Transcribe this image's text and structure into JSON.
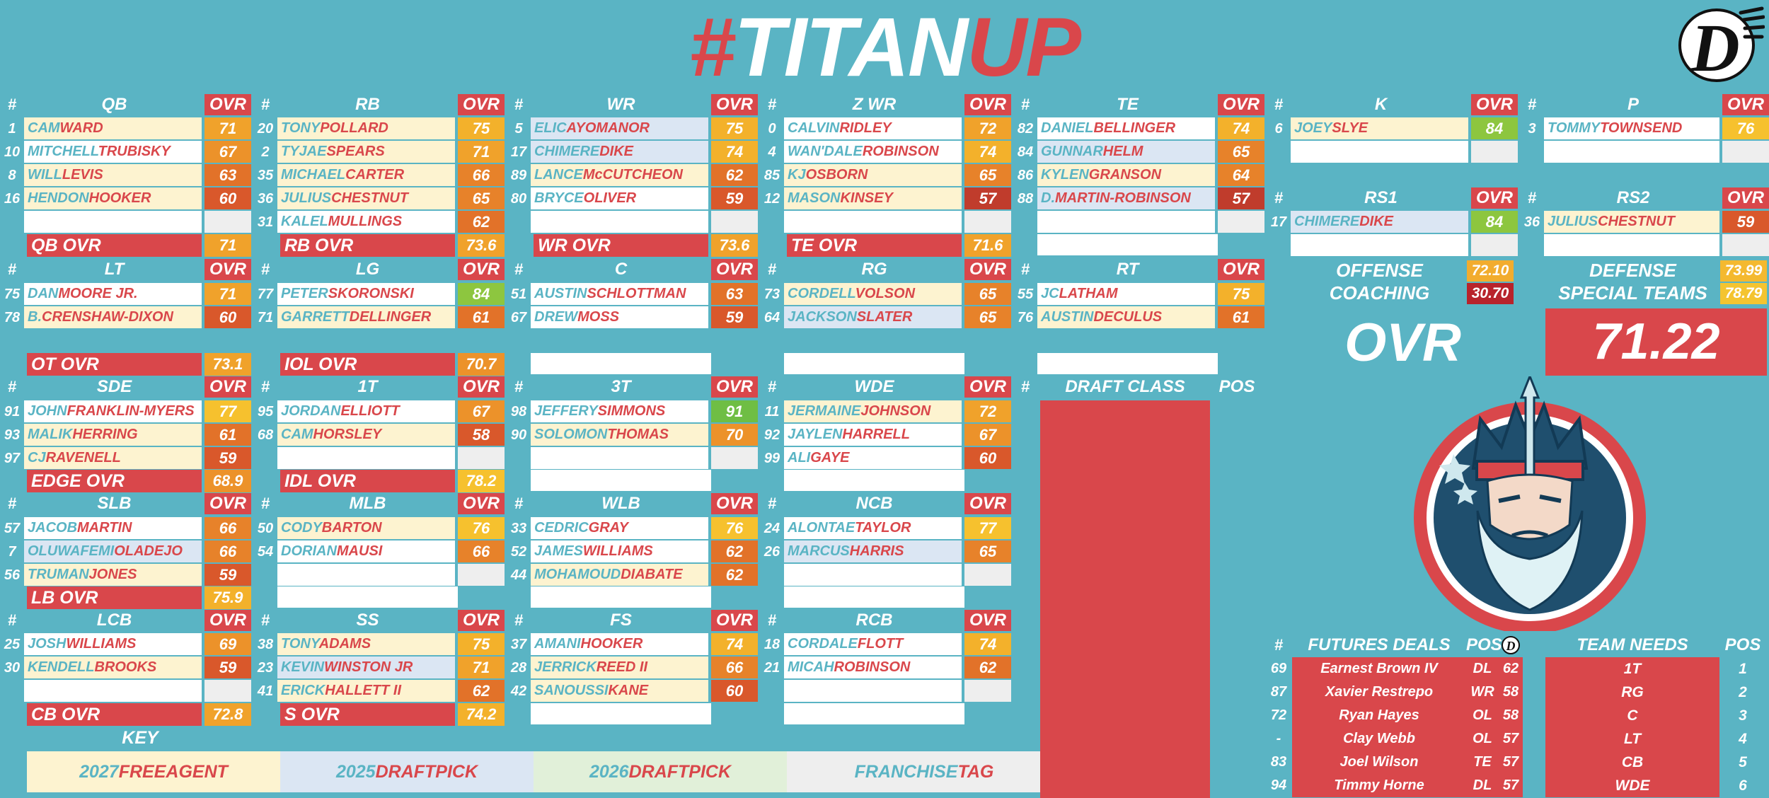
{
  "title": {
    "pre": "#",
    "mid": "TITAN",
    "suf": "UP"
  },
  "colors": {
    "background": "#5ab4c4",
    "accent": "#d9474b",
    "fa_2027": "#fdf3d0",
    "pick_2025": "#dbe6f3",
    "pick_2026": "#e1f0d9",
    "tag": "#eeeeee",
    "rating_scale": {
      "90": "#6fbe44",
      "84": "#8dc63f",
      "77": "#fbc02d",
      "75": "#f6b02b",
      "72": "#f2ac2e",
      "70": "#ef9a2b",
      "66": "#ea8a2a",
      "62": "#e57829",
      "59": "#dc5d2c",
      "57": "#c8412c"
    }
  },
  "header_num": "#",
  "header_ovr": "OVR",
  "groups": [
    {
      "pos": "QB",
      "players": [
        {
          "n": "1",
          "f": "CAM",
          "l": "WARD",
          "r": 71,
          "c": "fa"
        },
        {
          "n": "10",
          "f": "MITCHELL",
          "l": "TRUBISKY",
          "r": 67,
          "c": "w"
        },
        {
          "n": "8",
          "f": "WILL",
          "l": "LEVIS",
          "r": 63,
          "c": "fa"
        },
        {
          "n": "16",
          "f": "HENDON",
          "l": "HOOKER",
          "r": 60,
          "c": "fa"
        }
      ]
    },
    {
      "pos": "RB",
      "players": [
        {
          "n": "20",
          "f": "TONY",
          "l": "POLLARD",
          "r": 75,
          "c": "fa"
        },
        {
          "n": "2",
          "f": "TYJAE",
          "l": "SPEARS",
          "r": 71,
          "c": "fa"
        },
        {
          "n": "35",
          "f": "MICHAEL",
          "l": "CARTER",
          "r": 66,
          "c": "fa"
        },
        {
          "n": "36",
          "f": "JULIUS",
          "l": "CHESTNUT",
          "r": 65,
          "c": "fa"
        },
        {
          "n": "31",
          "f": "KALEL",
          "l": "MULLINGS",
          "r": 62,
          "c": "w"
        }
      ]
    },
    {
      "pos": "WR",
      "players": [
        {
          "n": "5",
          "f": "ELIC",
          "l": "AYOMANOR",
          "r": 75,
          "c": "dp"
        },
        {
          "n": "17",
          "f": "CHIMERE",
          "l": "DIKE",
          "r": 74,
          "c": "dp"
        },
        {
          "n": "89",
          "f": "LANCE",
          "l": "McCUTCHEON",
          "r": 62,
          "c": "fa"
        },
        {
          "n": "80",
          "f": "BRYCE",
          "l": "OLIVER",
          "r": 59,
          "c": "w"
        }
      ]
    },
    {
      "pos": "Z WR",
      "players": [
        {
          "n": "0",
          "f": "CALVIN",
          "l": "RIDLEY",
          "r": 72,
          "c": "w"
        },
        {
          "n": "4",
          "f": "WAN'DALE",
          "l": "ROBINSON",
          "r": 74,
          "c": "w"
        },
        {
          "n": "85",
          "f": "KJ",
          "l": "OSBORN",
          "r": 65,
          "c": "fa"
        },
        {
          "n": "12",
          "f": "MASON",
          "l": "KINSEY",
          "r": 57,
          "c": "fa"
        }
      ]
    },
    {
      "pos": "TE",
      "players": [
        {
          "n": "82",
          "f": "DANIEL",
          "l": "BELLINGER",
          "r": 74,
          "c": "w"
        },
        {
          "n": "84",
          "f": "GUNNAR",
          "l": "HELM",
          "r": 65,
          "c": "dp"
        },
        {
          "n": "86",
          "f": "KYLEN",
          "l": "GRANSON",
          "r": 64,
          "c": "fa"
        },
        {
          "n": "88",
          "f": "D.",
          "l": "MARTIN-ROBINSON",
          "r": 57,
          "c": "dp"
        }
      ]
    },
    {
      "pos": "K",
      "players": [
        {
          "n": "6",
          "f": "JOEY",
          "l": "SLYE",
          "r": 84,
          "c": "fa"
        }
      ]
    },
    {
      "pos": "P",
      "players": [
        {
          "n": "3",
          "f": "TOMMY",
          "l": "TOWNSEND",
          "r": 76,
          "c": "w"
        }
      ]
    },
    {
      "pos": "RS1",
      "players": [
        {
          "n": "17",
          "f": "CHIMERE",
          "l": "DIKE",
          "r": 84,
          "c": "dp"
        }
      ]
    },
    {
      "pos": "RS2",
      "players": [
        {
          "n": "36",
          "f": "JULIUS",
          "l": "CHESTNUT",
          "r": 59,
          "c": "fa"
        }
      ]
    },
    {
      "pos": "LT",
      "players": [
        {
          "n": "75",
          "f": "DAN",
          "l": "MOORE",
          "s": " JR.",
          "r": 71,
          "c": "w"
        },
        {
          "n": "78",
          "f": "B.",
          "l": "CRENSHAW-DIXON",
          "r": 60,
          "c": "fa"
        }
      ]
    },
    {
      "pos": "LG",
      "players": [
        {
          "n": "77",
          "f": "PETER",
          "l": "SKORONSKI",
          "r": 84,
          "c": "w"
        },
        {
          "n": "71",
          "f": "GARRETT",
          "l": "DELLINGER",
          "r": 61,
          "c": "fa"
        }
      ]
    },
    {
      "pos": "C",
      "players": [
        {
          "n": "51",
          "f": "AUSTIN",
          "l": "SCHLOTTMAN",
          "r": 63,
          "c": "w"
        },
        {
          "n": "67",
          "f": "DREW",
          "l": "MOSS",
          "r": 59,
          "c": "w"
        }
      ]
    },
    {
      "pos": "RG",
      "players": [
        {
          "n": "73",
          "f": "CORDELL",
          "l": "VOLSON",
          "r": 65,
          "c": "fa"
        },
        {
          "n": "64",
          "f": "JACKSON",
          "l": "SLATER",
          "r": 65,
          "c": "dp"
        }
      ]
    },
    {
      "pos": "RT",
      "players": [
        {
          "n": "55",
          "f": "JC",
          "l": "LATHAM",
          "r": 75,
          "c": "w"
        },
        {
          "n": "76",
          "f": "AUSTIN",
          "l": "DECULUS",
          "r": 61,
          "c": "fa"
        }
      ]
    },
    {
      "pos": "SDE",
      "players": [
        {
          "n": "91",
          "f": "JOHN",
          "l": "FRANKLIN-MYERS",
          "r": 77,
          "c": "w"
        },
        {
          "n": "93",
          "f": "MALIK",
          "l": "HERRING",
          "r": 61,
          "c": "fa"
        },
        {
          "n": "97",
          "f": "CJ",
          "l": "RAVENELL",
          "r": 59,
          "c": "fa"
        }
      ]
    },
    {
      "pos": "1T",
      "players": [
        {
          "n": "95",
          "f": "JORDAN",
          "l": "ELLIOTT",
          "r": 67,
          "c": "w"
        },
        {
          "n": "68",
          "f": "CAM",
          "l": "HORSLEY",
          "r": 58,
          "c": "fa"
        }
      ]
    },
    {
      "pos": "3T",
      "players": [
        {
          "n": "98",
          "f": "JEFFERY",
          "l": "SIMMONS",
          "r": 91,
          "c": "w"
        },
        {
          "n": "90",
          "f": "SOLOMON",
          "l": "THOMAS",
          "r": 70,
          "c": "fa"
        }
      ]
    },
    {
      "pos": "WDE",
      "players": [
        {
          "n": "11",
          "f": "JERMAINE",
          "l": "JOHNSON",
          "r": 72,
          "c": "fa"
        },
        {
          "n": "92",
          "f": "JAYLEN",
          "l": "HARRELL",
          "r": 67,
          "c": "w"
        },
        {
          "n": "99",
          "f": "ALI",
          "l": "GAYE",
          "r": 60,
          "c": "w"
        }
      ]
    },
    {
      "pos": "SLB",
      "players": [
        {
          "n": "57",
          "f": "JACOB",
          "l": "MARTIN",
          "r": 66,
          "c": "w"
        },
        {
          "n": "7",
          "f": "OLUWAFEMI",
          "l": "OLADEJO",
          "r": 66,
          "c": "dp"
        },
        {
          "n": "56",
          "f": "TRUMAN",
          "l": "JONES",
          "r": 59,
          "c": "fa"
        }
      ]
    },
    {
      "pos": "MLB",
      "players": [
        {
          "n": "50",
          "f": "CODY",
          "l": "BARTON",
          "r": 76,
          "c": "fa"
        },
        {
          "n": "54",
          "f": "DORIAN",
          "l": "MAUSI",
          "r": 66,
          "c": "w"
        }
      ]
    },
    {
      "pos": "WLB",
      "players": [
        {
          "n": "33",
          "f": "CEDRIC",
          "l": "GRAY",
          "r": 76,
          "c": "w"
        },
        {
          "n": "52",
          "f": "JAMES",
          "l": "WILLIAMS",
          "r": 62,
          "c": "w"
        },
        {
          "n": "44",
          "f": "MOHAMOUD",
          "l": "DIABATE",
          "r": 62,
          "c": "fa"
        }
      ]
    },
    {
      "pos": "NCB",
      "players": [
        {
          "n": "24",
          "f": "ALONTAE",
          "l": "TAYLOR",
          "r": 77,
          "c": "w"
        },
        {
          "n": "26",
          "f": "MARCUS",
          "l": "HARRIS",
          "r": 65,
          "c": "dp"
        }
      ]
    },
    {
      "pos": "LCB",
      "players": [
        {
          "n": "25",
          "f": "JOSH",
          "l": "WILLIAMS",
          "r": 69,
          "c": "w"
        },
        {
          "n": "30",
          "f": "KENDELL",
          "l": "BROOKS",
          "r": 59,
          "c": "fa"
        }
      ]
    },
    {
      "pos": "SS",
      "players": [
        {
          "n": "38",
          "f": "TONY",
          "l": "ADAMS",
          "r": 75,
          "c": "fa"
        },
        {
          "n": "23",
          "f": "KEVIN",
          "l": "WINSTON",
          "s": " JR",
          "r": 71,
          "c": "dp"
        },
        {
          "n": "41",
          "f": "ERICK",
          "l": "HALLETT",
          "s": " II",
          "r": 62,
          "c": "fa"
        }
      ]
    },
    {
      "pos": "FS",
      "players": [
        {
          "n": "37",
          "f": "AMANI",
          "l": "HOOKER",
          "r": 74,
          "c": "w"
        },
        {
          "n": "28",
          "f": "JERRICK",
          "l": "REED",
          "s": " II",
          "r": 66,
          "c": "fa"
        },
        {
          "n": "42",
          "f": "SANOUSSI",
          "l": "KANE",
          "r": 60,
          "c": "fa"
        }
      ]
    },
    {
      "pos": "RCB",
      "players": [
        {
          "n": "18",
          "f": "CORDALE",
          "l": "FLOTT",
          "r": 74,
          "c": "w"
        },
        {
          "n": "21",
          "f": "MICAH",
          "l": "ROBINSON",
          "r": 62,
          "c": "w"
        }
      ]
    }
  ],
  "summaries": [
    {
      "label": "QB OVR",
      "value": "71"
    },
    {
      "label": "RB OVR",
      "value": "73.6"
    },
    {
      "label": "WR OVR",
      "value": "73.6"
    },
    {
      "label": "TE OVR",
      "value": "71.6"
    },
    {
      "label": "OT OVR",
      "value": "73.1"
    },
    {
      "label": "IOL OVR",
      "value": "70.7"
    },
    {
      "label": "EDGE OVR",
      "value": "68.9"
    },
    {
      "label": "IDL OVR",
      "value": "78.2"
    },
    {
      "label": "LB OVR",
      "value": "75.9"
    },
    {
      "label": "CB OVR",
      "value": "72.8"
    },
    {
      "label": "S OVR",
      "value": "74.2"
    }
  ],
  "team": {
    "offense_label": "OFFENSE",
    "offense_value": "72.10",
    "coaching_label": "COACHING",
    "coaching_value": "30.70",
    "defense_label": "DEFENSE",
    "defense_value": "73.99",
    "st_label": "SPECIAL TEAMS",
    "st_value": "78.79",
    "ovr_label": "OVR",
    "ovr_value": "71.22"
  },
  "draft": {
    "header_num": "#",
    "header_label": "DRAFT CLASS",
    "header_pos": "POS"
  },
  "futures": {
    "header_num": "#",
    "header_label": "FUTURES DEALS",
    "header_pos": "POS",
    "rows": [
      {
        "n": "69",
        "name": "Earnest Brown IV",
        "pos": "DL",
        "ovr": "62"
      },
      {
        "n": "87",
        "name": "Xavier Restrepo",
        "pos": "WR",
        "ovr": "58"
      },
      {
        "n": "72",
        "name": "Ryan Hayes",
        "pos": "OL",
        "ovr": "58"
      },
      {
        "n": "-",
        "name": "Clay Webb",
        "pos": "OL",
        "ovr": "57"
      },
      {
        "n": "83",
        "name": "Joel Wilson",
        "pos": "TE",
        "ovr": "57"
      },
      {
        "n": "94",
        "name": "Timmy Horne",
        "pos": "DL",
        "ovr": "57"
      }
    ]
  },
  "needs": {
    "header_label": "TEAM NEEDS",
    "header_pos": "POS",
    "rows": [
      {
        "name": "1T",
        "rank": "1"
      },
      {
        "name": "RG",
        "rank": "2"
      },
      {
        "name": "C",
        "rank": "3"
      },
      {
        "name": "LT",
        "rank": "4"
      },
      {
        "name": "CB",
        "rank": "5"
      },
      {
        "name": "WDE",
        "rank": "6"
      }
    ]
  },
  "key": {
    "label": "KEY",
    "items": [
      {
        "f": "2027",
        "l": "FREEAGENT",
        "c": "fa"
      },
      {
        "f": "2025",
        "l": "DRAFTPICK",
        "c": "dp"
      },
      {
        "f": "2026",
        "l": "DRAFTPICK",
        "c": "dp26"
      },
      {
        "f": "FRANCHISE",
        "l": "TAG",
        "c": "tag"
      }
    ]
  },
  "logo_text": "D",
  "icons": {
    "top_right": "D-logo-icon",
    "mascot": "titan-king-mascot-icon",
    "futures_header": "D-logo-icon"
  }
}
